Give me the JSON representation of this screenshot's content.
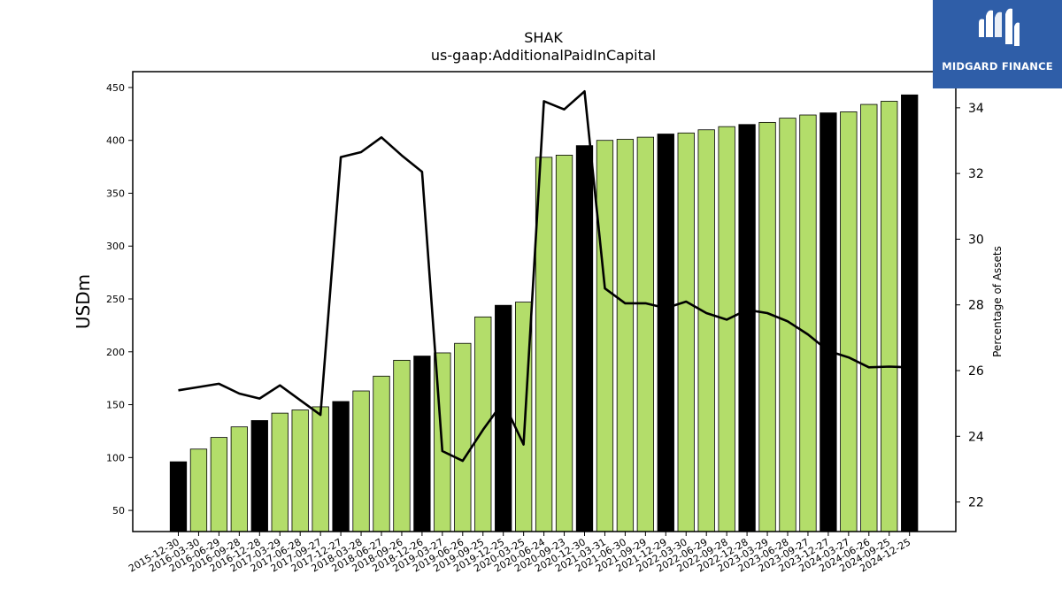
{
  "chart_data": {
    "type": "bar",
    "title": "SHAK",
    "subtitle": "us-gaap:AdditionalPaidInCapital",
    "ylabel": "USDm",
    "y2label": "Percentage of Assets",
    "ylim": [
      30,
      465
    ],
    "y2lim": [
      21.1,
      35.1
    ],
    "yticks": [
      50,
      100,
      150,
      200,
      250,
      300,
      350,
      400,
      450
    ],
    "y2ticks": [
      22,
      24,
      26,
      28,
      30,
      32,
      34
    ],
    "categories": [
      "2015-12-30",
      "2016-03-30",
      "2016-06-29",
      "2016-09-28",
      "2016-12-28",
      "2017-03-29",
      "2017-06-28",
      "2017-09-27",
      "2017-12-27",
      "2018-03-28",
      "2018-06-27",
      "2018-09-26",
      "2018-12-26",
      "2019-03-27",
      "2019-06-26",
      "2019-09-25",
      "2019-12-25",
      "2020-03-25",
      "2020-06-24",
      "2020-09-23",
      "2020-12-30",
      "2021-03-31",
      "2021-06-30",
      "2021-09-29",
      "2021-12-29",
      "2022-03-30",
      "2022-06-29",
      "2022-09-28",
      "2022-12-28",
      "2023-03-29",
      "2023-06-28",
      "2023-09-27",
      "2023-12-27",
      "2024-03-27",
      "2024-06-26",
      "2024-09-25",
      "2024-12-25"
    ],
    "series": [
      {
        "type": "bar",
        "values": [
          96,
          108,
          119,
          129,
          135,
          142,
          145,
          148,
          153,
          163,
          177,
          192,
          196,
          199,
          208,
          233,
          244,
          247,
          384,
          386,
          395,
          400,
          401,
          403,
          406,
          407,
          410,
          413,
          415,
          417,
          421,
          424,
          426,
          427,
          434,
          437,
          443
        ],
        "fiscal_year_end": [
          true,
          false,
          false,
          false,
          true,
          false,
          false,
          false,
          true,
          false,
          false,
          false,
          true,
          false,
          false,
          false,
          true,
          false,
          false,
          false,
          true,
          false,
          false,
          false,
          true,
          false,
          false,
          false,
          true,
          false,
          false,
          false,
          true,
          false,
          false,
          false,
          true
        ]
      },
      {
        "type": "line",
        "axis": "right",
        "values": [
          25.4,
          25.5,
          25.6,
          25.3,
          25.15,
          25.55,
          25.1,
          24.65,
          32.5,
          32.65,
          33.1,
          32.55,
          32.05,
          23.55,
          23.25,
          24.2,
          25.05,
          23.75,
          34.2,
          33.95,
          34.5,
          28.5,
          28.05,
          28.05,
          27.9,
          28.1,
          27.75,
          27.55,
          27.85,
          27.75,
          27.5,
          27.1,
          26.6,
          26.4,
          26.1,
          26.12,
          26.1
        ]
      }
    ],
    "colors": {
      "bar": "#b3dd6a",
      "bar_fiscal_year_end": "#000000",
      "line": "#000000"
    },
    "grid": false
  },
  "logo": {
    "text": "MIDGARD FINANCE",
    "background": "#2f5ea8"
  }
}
